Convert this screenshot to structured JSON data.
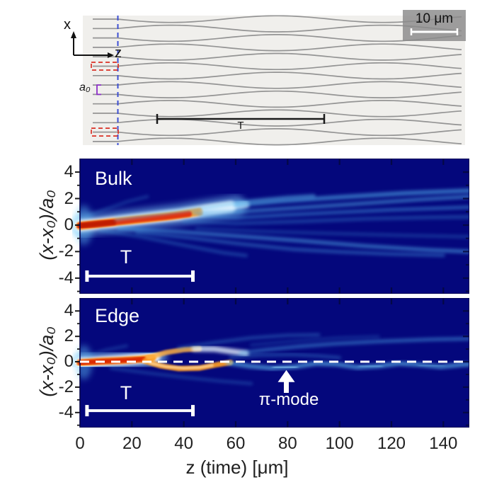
{
  "micrograph": {
    "x_axis_label": "x",
    "z_axis_label": "z",
    "spacing_label": "a₀",
    "scale_bar_label": "10 μm",
    "period_label": "T",
    "n_waveguides": 14,
    "colors": {
      "background": "#f0efec",
      "waveguide": "#8c8c8c",
      "input_marker": "#d93025",
      "facet_line": "#3d4fd4",
      "spacing_bracket": "#8c2fc7"
    }
  },
  "axes": {
    "x_label": "z (time) [μm]",
    "x_ticks": [
      "0",
      "20",
      "40",
      "60",
      "80",
      "100",
      "120",
      "140"
    ],
    "x_tick_values": [
      0,
      20,
      40,
      60,
      80,
      100,
      120,
      140
    ],
    "x_range": [
      0,
      150
    ],
    "y_label": "(x-x₀)/a₀",
    "y_ticks": [
      "4",
      "2",
      "0",
      "-2",
      "-4"
    ],
    "y_tick_values": [
      4,
      2,
      0,
      -2,
      -4
    ],
    "y_range": [
      -5.1,
      5.1
    ]
  },
  "chart_data": [
    {
      "type": "heatmap",
      "panel": "bulk",
      "label": "Bulk",
      "colormap": "jet",
      "background": "#04077c",
      "annotations": {
        "period_bar": {
          "z1": 2.7,
          "z2": 43.5,
          "y": -3.85,
          "label": "T"
        }
      },
      "blobs": [
        {
          "cx": 1.5,
          "cy": 0,
          "rx": 3.5,
          "ry": 1.5,
          "c": "#5fc0f5",
          "o": 0.45,
          "b": 3
        }
      ],
      "beams": [
        {
          "pts": [
            [
              0,
              -0.05
            ],
            [
              12,
              0.2
            ],
            [
              25,
              0.5
            ],
            [
              38,
              0.78
            ],
            [
              50,
              1.15
            ],
            [
              60,
              1.45
            ]
          ],
          "c": "#86d7ff",
          "w": 1.6,
          "o": 0.5,
          "b": 3
        },
        {
          "pts": [
            [
              0,
              -0.05
            ],
            [
              12,
              0.2
            ],
            [
              25,
              0.5
            ],
            [
              38,
              0.78
            ],
            [
              50,
              1.15
            ],
            [
              58,
              1.38
            ]
          ],
          "c": "#ffffff",
          "w": 0.85,
          "o": 0.9,
          "b": 2
        },
        {
          "pts": [
            [
              0,
              -0.05
            ],
            [
              3,
              0
            ]
          ],
          "c": "#ffffff",
          "w": 1.15,
          "o": 0.85,
          "b": 2
        },
        {
          "pts": [
            [
              0,
              -0.05
            ],
            [
              11,
              0.18
            ],
            [
              24,
              0.45
            ],
            [
              36,
              0.72
            ],
            [
              46,
              1.0
            ]
          ],
          "c": "#ff9715",
          "w": 0.6,
          "o": 0.95,
          "b": 1
        },
        {
          "pts": [
            [
              0,
              -0.05
            ],
            [
              10,
              0.15
            ],
            [
              22,
              0.42
            ],
            [
              33,
              0.63
            ],
            [
              42,
              0.85
            ]
          ],
          "c": "#e1310a",
          "w": 0.45,
          "o": 1,
          "b": 1
        },
        {
          "pts": [
            [
              0,
              -0.05
            ],
            [
              13,
              0.22
            ]
          ],
          "c": "#bf1d03",
          "w": 0.4,
          "o": 1,
          "b": 1
        },
        {
          "pts": [
            [
              48,
              1.1
            ],
            [
              56,
              1.32
            ],
            [
              64,
              1.55
            ]
          ],
          "c": "#dff2ff",
          "w": 0.5,
          "o": 0.75,
          "b": 2
        },
        {
          "pts": [
            [
              60,
              1.5
            ],
            [
              78,
              1.82
            ],
            [
              100,
              2.1
            ],
            [
              125,
              2.4
            ],
            [
              150,
              2.6
            ]
          ],
          "c": "#54b6f0",
          "w": 0.34,
          "o": 0.55,
          "b": 2
        },
        {
          "pts": [
            [
              14,
              0.45
            ],
            [
              30,
              0.85
            ],
            [
              48,
              1.32
            ],
            [
              64,
              1.78
            ],
            [
              80,
              2.08
            ],
            [
              90,
              2.2
            ]
          ],
          "c": "#5fc0f2",
          "w": 0.3,
          "o": 0.45,
          "b": 2
        },
        {
          "pts": [
            [
              44,
              0.9
            ],
            [
              62,
              1.02
            ],
            [
              82,
              1.28
            ],
            [
              105,
              1.58
            ],
            [
              130,
              1.92
            ],
            [
              150,
              2.15
            ]
          ],
          "c": "#55b2ec",
          "w": 0.3,
          "o": 0.5,
          "b": 2
        },
        {
          "pts": [
            [
              46,
              0.72
            ],
            [
              60,
              0.55
            ],
            [
              78,
              0.75
            ],
            [
              98,
              0.95
            ],
            [
              120,
              1.15
            ],
            [
              150,
              1.35
            ]
          ],
          "c": "#4aa5e8",
          "w": 0.28,
          "o": 0.45,
          "b": 2
        },
        {
          "pts": [
            [
              40,
              0.3
            ],
            [
              60,
              0.12
            ],
            [
              85,
              0.28
            ],
            [
              110,
              0.48
            ],
            [
              135,
              0.58
            ],
            [
              150,
              0.62
            ]
          ],
          "c": "#3e90d8",
          "w": 0.3,
          "o": 0.35,
          "b": 2
        },
        {
          "pts": [
            [
              15,
              -0.25
            ],
            [
              38,
              -0.5
            ],
            [
              60,
              -0.82
            ],
            [
              85,
              -1.18
            ],
            [
              110,
              -1.58
            ],
            [
              135,
              -1.88
            ],
            [
              150,
              -2.0
            ]
          ],
          "c": "#54b4ee",
          "w": 0.3,
          "o": 0.5,
          "b": 2
        },
        {
          "pts": [
            [
              22,
              -0.55
            ],
            [
              42,
              -0.95
            ],
            [
              62,
              -1.42
            ],
            [
              82,
              -1.82
            ],
            [
              100,
              -2.02
            ],
            [
              120,
              -2.18
            ],
            [
              140,
              -2.28
            ]
          ],
          "c": "#48a2e4",
          "w": 0.28,
          "o": 0.4,
          "b": 2
        },
        {
          "pts": [
            [
              8,
              -0.4
            ],
            [
              24,
              -0.9
            ],
            [
              40,
              -1.52
            ],
            [
              55,
              -2.08
            ],
            [
              64,
              -2.3
            ]
          ],
          "c": "#3e95da",
          "w": 0.26,
          "o": 0.35,
          "b": 2
        },
        {
          "pts": [
            [
              45,
              -0.25
            ],
            [
              70,
              -0.48
            ],
            [
              95,
              -0.62
            ],
            [
              125,
              -0.78
            ],
            [
              150,
              -0.88
            ]
          ],
          "c": "#3a8cd2",
          "w": 0.26,
          "o": 0.3,
          "b": 2
        },
        {
          "pts": [
            [
              3,
              0.7
            ],
            [
              10,
              1.2
            ],
            [
              18,
              1.75
            ],
            [
              26,
              2.15
            ]
          ],
          "c": "#3e95da",
          "w": 0.24,
          "o": 0.28,
          "b": 2
        }
      ]
    },
    {
      "type": "heatmap",
      "panel": "edge",
      "label": "Edge",
      "colormap": "jet",
      "background": "#04077c",
      "annotations": {
        "period_bar": {
          "z1": 2.7,
          "z2": 43.5,
          "y": -3.85,
          "label": "T"
        },
        "zero_line": {
          "y": 0,
          "style": "dashed",
          "color": "#ffffff"
        },
        "arrow": {
          "z": 79.5,
          "tip_y": -0.65,
          "tail_y": -2.45,
          "label": "π-mode"
        }
      },
      "blobs": [
        {
          "cx": 1.5,
          "cy": -0.05,
          "rx": 3.2,
          "ry": 1.35,
          "c": "#5fc0f5",
          "o": 0.45,
          "b": 3
        }
      ],
      "beams": [
        {
          "pts": [
            [
              0,
              -0.1
            ],
            [
              8,
              0.02
            ],
            [
              16,
              0.12
            ],
            [
              24,
              0.25
            ],
            [
              30,
              0.42
            ]
          ],
          "c": "#8fd8ff",
          "w": 1.45,
          "o": 0.55,
          "b": 3
        },
        {
          "pts": [
            [
              0,
              -0.1
            ],
            [
              8,
              0.02
            ],
            [
              16,
              0.12
            ],
            [
              24,
              0.25
            ],
            [
              29,
              0.38
            ]
          ],
          "c": "#ffffff",
          "w": 0.8,
          "o": 0.9,
          "b": 2
        },
        {
          "pts": [
            [
              0,
              -0.1
            ],
            [
              3,
              -0.05
            ]
          ],
          "c": "#ffffff",
          "w": 1.1,
          "o": 0.85,
          "b": 2
        },
        {
          "pts": [
            [
              0,
              -0.08
            ],
            [
              8,
              0.04
            ],
            [
              16,
              0.1
            ],
            [
              23,
              0.2
            ],
            [
              28,
              0.32
            ]
          ],
          "c": "#ff9715",
          "w": 0.55,
          "o": 0.95,
          "b": 1
        },
        {
          "pts": [
            [
              0,
              -0.08
            ],
            [
              7,
              0.02
            ],
            [
              14,
              0.08
            ],
            [
              20,
              0.14
            ],
            [
              25,
              0.22
            ]
          ],
          "c": "#dd2b06",
          "w": 0.42,
          "o": 1,
          "b": 1
        },
        {
          "pts": [
            [
              26,
              0.32
            ],
            [
              33,
              0.72
            ],
            [
              40,
              0.95
            ],
            [
              46,
              1.02
            ]
          ],
          "c": "#ffb042",
          "w": 0.4,
          "o": 0.85,
          "b": 1
        },
        {
          "pts": [
            [
              44,
              1.02
            ],
            [
              52,
              1.0
            ],
            [
              58,
              0.82
            ],
            [
              64,
              0.66
            ]
          ],
          "c": "#e8f6ff",
          "w": 0.45,
          "o": 0.8,
          "b": 2
        },
        {
          "pts": [
            [
              62,
              0.7
            ],
            [
              72,
              0.95
            ],
            [
              84,
              1.2
            ],
            [
              98,
              1.42
            ],
            [
              115,
              1.6
            ],
            [
              135,
              1.75
            ],
            [
              150,
              1.82
            ]
          ],
          "c": "#50aeea",
          "w": 0.3,
          "o": 0.45,
          "b": 2
        },
        {
          "pts": [
            [
              25,
              0.06
            ],
            [
              31,
              -0.32
            ],
            [
              38,
              -0.54
            ],
            [
              46,
              -0.5
            ],
            [
              53,
              -0.22
            ],
            [
              58,
              -0.06
            ]
          ],
          "c": "#ff9c20",
          "w": 0.42,
          "o": 0.92,
          "b": 1
        },
        {
          "pts": [
            [
              27,
              -0.1
            ],
            [
              33,
              -0.38
            ],
            [
              40,
              -0.5
            ],
            [
              46,
              -0.45
            ],
            [
              51,
              -0.28
            ]
          ],
          "c": "#ffd9a0",
          "w": 0.2,
          "o": 0.8,
          "b": 1
        },
        {
          "pts": [
            [
              57,
              -0.08
            ],
            [
              65,
              -0.34
            ],
            [
              74,
              -0.5
            ],
            [
              83,
              -0.38
            ],
            [
              91,
              -0.14
            ],
            [
              99,
              -0.2
            ],
            [
              107,
              -0.44
            ],
            [
              115,
              -0.34
            ],
            [
              123,
              -0.14
            ],
            [
              131,
              -0.24
            ],
            [
              139,
              -0.4
            ],
            [
              147,
              -0.24
            ],
            [
              150,
              -0.2
            ]
          ],
          "c": "#62c2f4",
          "w": 0.36,
          "o": 0.6,
          "b": 2
        },
        {
          "pts": [
            [
              58,
              0.36
            ],
            [
              70,
              0.52
            ],
            [
              82,
              0.56
            ],
            [
              92,
              0.46
            ],
            [
              100,
              0.32
            ]
          ],
          "c": "#4aa2e4",
          "w": 0.26,
          "o": 0.35,
          "b": 2
        },
        {
          "pts": [
            [
              38,
              1.08
            ],
            [
              52,
              1.52
            ],
            [
              66,
              1.88
            ],
            [
              80,
              2.08
            ],
            [
              92,
              2.12
            ]
          ],
          "c": "#46a0e0",
          "w": 0.26,
          "o": 0.35,
          "b": 2
        },
        {
          "pts": [
            [
              66,
              1.32
            ],
            [
              82,
              1.62
            ],
            [
              100,
              1.88
            ],
            [
              115,
              1.98
            ]
          ],
          "c": "#3c92d8",
          "w": 0.24,
          "o": 0.25,
          "b": 2
        },
        {
          "pts": [
            [
              12,
              -0.5
            ],
            [
              26,
              -0.88
            ],
            [
              40,
              -1.22
            ],
            [
              54,
              -1.52
            ],
            [
              66,
              -1.72
            ]
          ],
          "c": "#3c92d8",
          "w": 0.26,
          "o": 0.3,
          "b": 2
        },
        {
          "pts": [
            [
              3,
              0.5
            ],
            [
              10,
              0.92
            ],
            [
              18,
              1.25
            ]
          ],
          "c": "#3e95da",
          "w": 0.24,
          "o": 0.28,
          "b": 2
        },
        {
          "pts": [
            [
              75,
              -0.46
            ],
            [
              83,
              -0.4
            ]
          ],
          "c": "#a0e0ff",
          "w": 0.4,
          "o": 0.5,
          "b": 2
        },
        {
          "pts": [
            [
              108,
              -0.4
            ],
            [
              116,
              -0.34
            ]
          ],
          "c": "#8ad2f8",
          "w": 0.34,
          "o": 0.38,
          "b": 2
        },
        {
          "pts": [
            [
              131,
              -0.3
            ],
            [
              140,
              -0.32
            ]
          ],
          "c": "#8ad2f8",
          "w": 0.3,
          "o": 0.32,
          "b": 2
        }
      ]
    }
  ]
}
